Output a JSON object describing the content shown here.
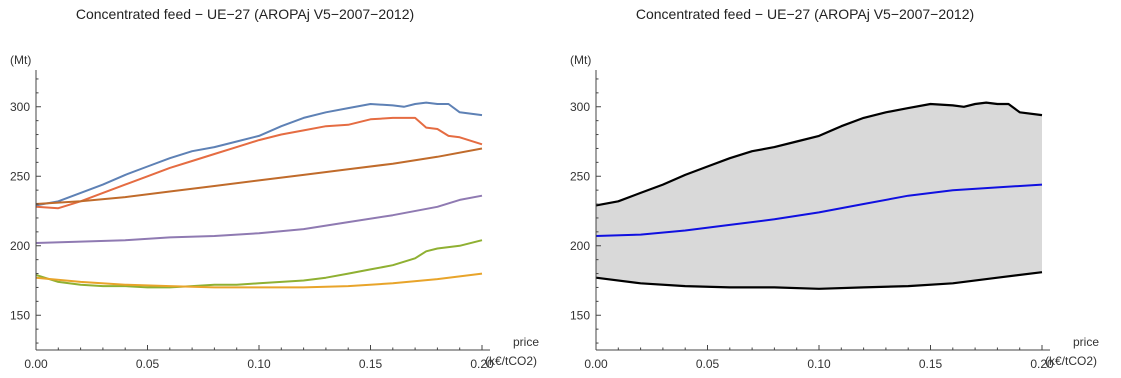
{
  "chart_data": [
    {
      "type": "line",
      "title": "Concentrated feed − UE−27 (AROPAj V5−2007−2012)",
      "xlabel_top": "price",
      "xlabel_unit": "(k€/tCO2)",
      "ylabel": "(Mt)",
      "xlim": [
        0,
        0.2
      ],
      "ylim": [
        125,
        325
      ],
      "x_ticks": [
        "0.00",
        "0.05",
        "0.10",
        "0.15",
        "0.20"
      ],
      "y_ticks": [
        "150",
        "200",
        "250",
        "300"
      ],
      "colors": [
        "#5e81b5",
        "#e56c42",
        "#c06b2b",
        "#8f7ab2",
        "#8fb032",
        "#e8a42a"
      ],
      "series": [
        {
          "x": [
            0,
            0.01,
            0.02,
            0.03,
            0.04,
            0.05,
            0.06,
            0.07,
            0.08,
            0.09,
            0.1,
            0.11,
            0.12,
            0.13,
            0.14,
            0.15,
            0.16,
            0.165,
            0.17,
            0.175,
            0.18,
            0.185,
            0.19,
            0.2
          ],
          "y": [
            229,
            232,
            238,
            244,
            251,
            257,
            263,
            268,
            271,
            275,
            279,
            286,
            292,
            296,
            299,
            302,
            301,
            300,
            302,
            303,
            302,
            302,
            296,
            294
          ]
        },
        {
          "x": [
            0,
            0.01,
            0.02,
            0.03,
            0.04,
            0.05,
            0.06,
            0.07,
            0.08,
            0.09,
            0.1,
            0.11,
            0.12,
            0.13,
            0.14,
            0.15,
            0.16,
            0.17,
            0.175,
            0.18,
            0.185,
            0.19,
            0.2
          ],
          "y": [
            228,
            227,
            232,
            238,
            244,
            250,
            256,
            261,
            266,
            271,
            276,
            280,
            283,
            286,
            287,
            291,
            292,
            292,
            285,
            284,
            279,
            278,
            273
          ]
        },
        {
          "x": [
            0,
            0.02,
            0.04,
            0.06,
            0.08,
            0.1,
            0.12,
            0.14,
            0.16,
            0.18,
            0.2
          ],
          "y": [
            230,
            232,
            235,
            239,
            243,
            247,
            251,
            255,
            259,
            264,
            270
          ]
        },
        {
          "x": [
            0,
            0.02,
            0.04,
            0.06,
            0.08,
            0.1,
            0.12,
            0.14,
            0.16,
            0.18,
            0.19,
            0.2
          ],
          "y": [
            202,
            203,
            204,
            206,
            207,
            209,
            212,
            217,
            222,
            228,
            233,
            236
          ]
        },
        {
          "x": [
            0,
            0.01,
            0.02,
            0.03,
            0.04,
            0.05,
            0.06,
            0.07,
            0.08,
            0.09,
            0.1,
            0.11,
            0.12,
            0.13,
            0.14,
            0.15,
            0.16,
            0.17,
            0.175,
            0.18,
            0.19,
            0.2
          ],
          "y": [
            179,
            174,
            172,
            171,
            171,
            170,
            170,
            171,
            172,
            172,
            173,
            174,
            175,
            177,
            180,
            183,
            186,
            191,
            196,
            198,
            200,
            204
          ]
        },
        {
          "x": [
            0,
            0.02,
            0.04,
            0.06,
            0.08,
            0.1,
            0.12,
            0.14,
            0.16,
            0.18,
            0.2
          ],
          "y": [
            177,
            174,
            172,
            171,
            170,
            170,
            170,
            171,
            173,
            176,
            180
          ]
        }
      ]
    },
    {
      "type": "area",
      "title": "Concentrated feed − UE−27 (AROPAj V5−2007−2012)",
      "xlabel_top": "price",
      "xlabel_unit": "(k€/tCO2)",
      "ylabel": "(Mt)",
      "xlim": [
        0,
        0.2
      ],
      "ylim": [
        125,
        325
      ],
      "x_ticks": [
        "0.00",
        "0.05",
        "0.10",
        "0.15",
        "0.20"
      ],
      "y_ticks": [
        "150",
        "200",
        "250",
        "300"
      ],
      "fill_color": "#d9d9d9",
      "bound_color": "#000000",
      "mean_color": "#1010e0",
      "upper": {
        "x": [
          0,
          0.01,
          0.02,
          0.03,
          0.04,
          0.05,
          0.06,
          0.07,
          0.08,
          0.09,
          0.1,
          0.11,
          0.12,
          0.13,
          0.14,
          0.15,
          0.16,
          0.165,
          0.17,
          0.175,
          0.18,
          0.185,
          0.19,
          0.2
        ],
        "y": [
          229,
          232,
          238,
          244,
          251,
          257,
          263,
          268,
          271,
          275,
          279,
          286,
          292,
          296,
          299,
          302,
          301,
          300,
          302,
          303,
          302,
          302,
          296,
          294
        ]
      },
      "lower": {
        "x": [
          0,
          0.02,
          0.04,
          0.06,
          0.08,
          0.1,
          0.12,
          0.14,
          0.16,
          0.18,
          0.2
        ],
        "y": [
          177,
          173,
          171,
          170,
          170,
          169,
          170,
          171,
          173,
          177,
          181
        ]
      },
      "mean": {
        "x": [
          0,
          0.02,
          0.04,
          0.06,
          0.08,
          0.1,
          0.12,
          0.14,
          0.16,
          0.18,
          0.2
        ],
        "y": [
          207,
          208,
          211,
          215,
          219,
          224,
          230,
          236,
          240,
          242,
          244
        ]
      }
    }
  ]
}
